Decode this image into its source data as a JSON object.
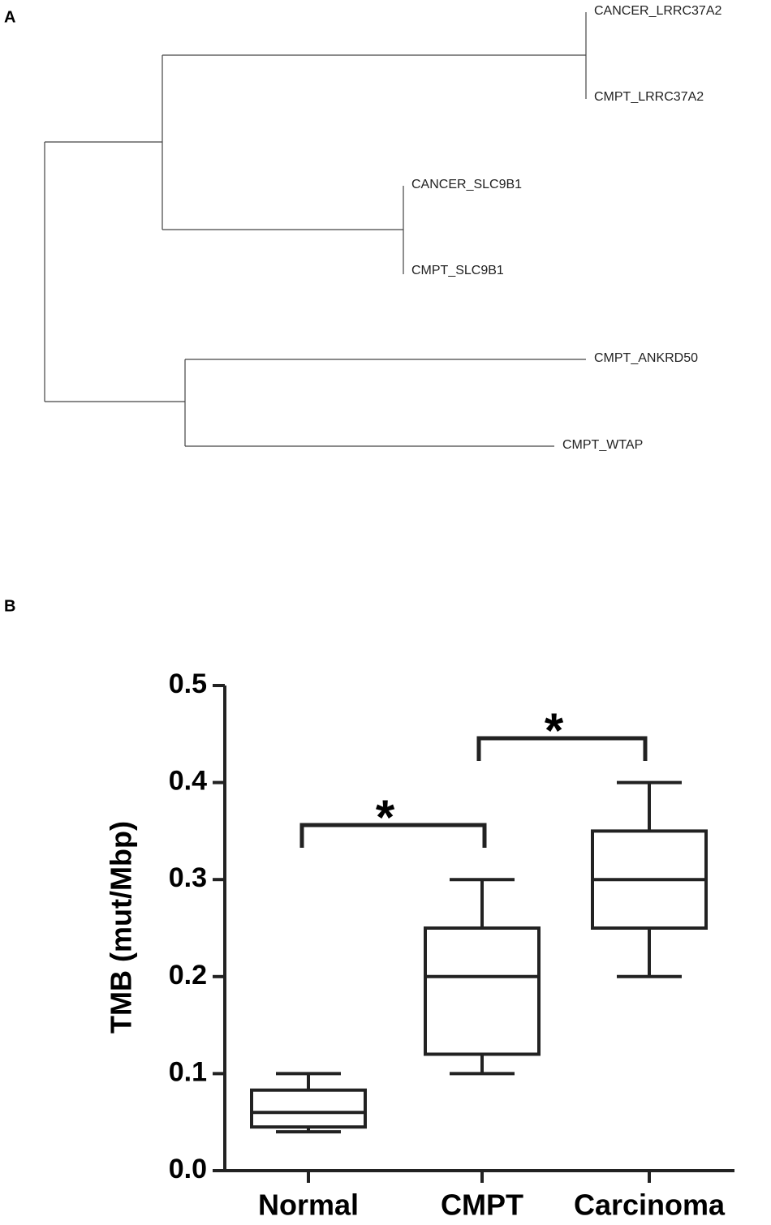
{
  "panel_a": {
    "label": "A",
    "leaves": [
      "CANCER_LRRC37A2",
      "CMPT_LRRC37A2",
      "CANCER_SLC9B1",
      "CMPT_SLC9B1",
      "CMPT_ANKRD50",
      "CMPT_WTAP"
    ]
  },
  "panel_b": {
    "label": "B"
  },
  "chart_data": {
    "type": "box",
    "y_label": "TMB (mut/Mbp)",
    "categories": [
      "Normal",
      "CMPT",
      "Carcinoma"
    ],
    "boxes": [
      {
        "min": 0.04,
        "q1": 0.045,
        "median": 0.06,
        "q3": 0.083,
        "max": 0.1
      },
      {
        "min": 0.1,
        "q1": 0.12,
        "median": 0.2,
        "q3": 0.25,
        "max": 0.3
      },
      {
        "min": 0.2,
        "q1": 0.25,
        "median": 0.3,
        "q3": 0.35,
        "max": 0.4
      }
    ],
    "color": "#222222",
    "ylim": [
      0,
      0.5
    ],
    "yticks": [
      {
        "value": 0,
        "label": "0.0"
      },
      0.1,
      0.2,
      0.3,
      0.4,
      0.5
    ],
    "annotations": [
      "*",
      "*"
    ]
  }
}
